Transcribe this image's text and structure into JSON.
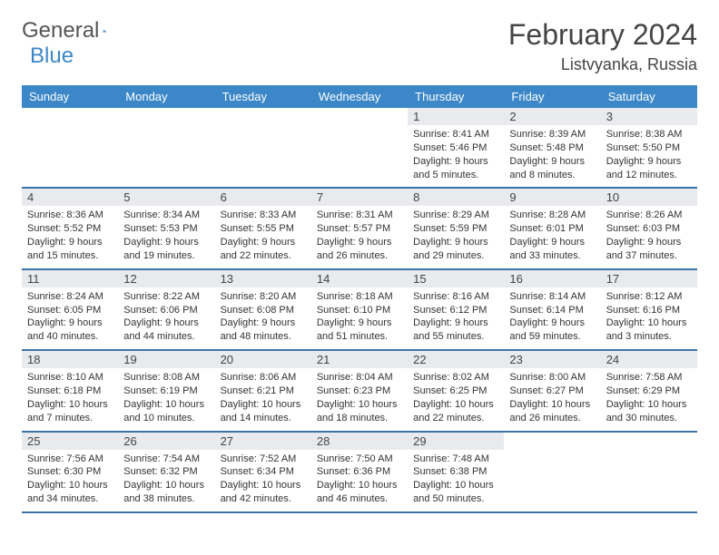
{
  "logo": {
    "text1": "General",
    "text2": "Blue",
    "color1": "#666666",
    "color2": "#3c87c7"
  },
  "title": "February 2024",
  "location": "Listvyanka, Russia",
  "header_bg": "#3c87c7",
  "daynum_bg": "#e8eaed",
  "rule_color": "#3c73a8",
  "days_of_week": [
    "Sunday",
    "Monday",
    "Tuesday",
    "Wednesday",
    "Thursday",
    "Friday",
    "Saturday"
  ],
  "weeks": [
    [
      null,
      null,
      null,
      null,
      {
        "n": "1",
        "sunrise": "Sunrise: 8:41 AM",
        "sunset": "Sunset: 5:46 PM",
        "day1": "Daylight: 9 hours",
        "day2": "and 5 minutes."
      },
      {
        "n": "2",
        "sunrise": "Sunrise: 8:39 AM",
        "sunset": "Sunset: 5:48 PM",
        "day1": "Daylight: 9 hours",
        "day2": "and 8 minutes."
      },
      {
        "n": "3",
        "sunrise": "Sunrise: 8:38 AM",
        "sunset": "Sunset: 5:50 PM",
        "day1": "Daylight: 9 hours",
        "day2": "and 12 minutes."
      }
    ],
    [
      {
        "n": "4",
        "sunrise": "Sunrise: 8:36 AM",
        "sunset": "Sunset: 5:52 PM",
        "day1": "Daylight: 9 hours",
        "day2": "and 15 minutes."
      },
      {
        "n": "5",
        "sunrise": "Sunrise: 8:34 AM",
        "sunset": "Sunset: 5:53 PM",
        "day1": "Daylight: 9 hours",
        "day2": "and 19 minutes."
      },
      {
        "n": "6",
        "sunrise": "Sunrise: 8:33 AM",
        "sunset": "Sunset: 5:55 PM",
        "day1": "Daylight: 9 hours",
        "day2": "and 22 minutes."
      },
      {
        "n": "7",
        "sunrise": "Sunrise: 8:31 AM",
        "sunset": "Sunset: 5:57 PM",
        "day1": "Daylight: 9 hours",
        "day2": "and 26 minutes."
      },
      {
        "n": "8",
        "sunrise": "Sunrise: 8:29 AM",
        "sunset": "Sunset: 5:59 PM",
        "day1": "Daylight: 9 hours",
        "day2": "and 29 minutes."
      },
      {
        "n": "9",
        "sunrise": "Sunrise: 8:28 AM",
        "sunset": "Sunset: 6:01 PM",
        "day1": "Daylight: 9 hours",
        "day2": "and 33 minutes."
      },
      {
        "n": "10",
        "sunrise": "Sunrise: 8:26 AM",
        "sunset": "Sunset: 6:03 PM",
        "day1": "Daylight: 9 hours",
        "day2": "and 37 minutes."
      }
    ],
    [
      {
        "n": "11",
        "sunrise": "Sunrise: 8:24 AM",
        "sunset": "Sunset: 6:05 PM",
        "day1": "Daylight: 9 hours",
        "day2": "and 40 minutes."
      },
      {
        "n": "12",
        "sunrise": "Sunrise: 8:22 AM",
        "sunset": "Sunset: 6:06 PM",
        "day1": "Daylight: 9 hours",
        "day2": "and 44 minutes."
      },
      {
        "n": "13",
        "sunrise": "Sunrise: 8:20 AM",
        "sunset": "Sunset: 6:08 PM",
        "day1": "Daylight: 9 hours",
        "day2": "and 48 minutes."
      },
      {
        "n": "14",
        "sunrise": "Sunrise: 8:18 AM",
        "sunset": "Sunset: 6:10 PM",
        "day1": "Daylight: 9 hours",
        "day2": "and 51 minutes."
      },
      {
        "n": "15",
        "sunrise": "Sunrise: 8:16 AM",
        "sunset": "Sunset: 6:12 PM",
        "day1": "Daylight: 9 hours",
        "day2": "and 55 minutes."
      },
      {
        "n": "16",
        "sunrise": "Sunrise: 8:14 AM",
        "sunset": "Sunset: 6:14 PM",
        "day1": "Daylight: 9 hours",
        "day2": "and 59 minutes."
      },
      {
        "n": "17",
        "sunrise": "Sunrise: 8:12 AM",
        "sunset": "Sunset: 6:16 PM",
        "day1": "Daylight: 10 hours",
        "day2": "and 3 minutes."
      }
    ],
    [
      {
        "n": "18",
        "sunrise": "Sunrise: 8:10 AM",
        "sunset": "Sunset: 6:18 PM",
        "day1": "Daylight: 10 hours",
        "day2": "and 7 minutes."
      },
      {
        "n": "19",
        "sunrise": "Sunrise: 8:08 AM",
        "sunset": "Sunset: 6:19 PM",
        "day1": "Daylight: 10 hours",
        "day2": "and 10 minutes."
      },
      {
        "n": "20",
        "sunrise": "Sunrise: 8:06 AM",
        "sunset": "Sunset: 6:21 PM",
        "day1": "Daylight: 10 hours",
        "day2": "and 14 minutes."
      },
      {
        "n": "21",
        "sunrise": "Sunrise: 8:04 AM",
        "sunset": "Sunset: 6:23 PM",
        "day1": "Daylight: 10 hours",
        "day2": "and 18 minutes."
      },
      {
        "n": "22",
        "sunrise": "Sunrise: 8:02 AM",
        "sunset": "Sunset: 6:25 PM",
        "day1": "Daylight: 10 hours",
        "day2": "and 22 minutes."
      },
      {
        "n": "23",
        "sunrise": "Sunrise: 8:00 AM",
        "sunset": "Sunset: 6:27 PM",
        "day1": "Daylight: 10 hours",
        "day2": "and 26 minutes."
      },
      {
        "n": "24",
        "sunrise": "Sunrise: 7:58 AM",
        "sunset": "Sunset: 6:29 PM",
        "day1": "Daylight: 10 hours",
        "day2": "and 30 minutes."
      }
    ],
    [
      {
        "n": "25",
        "sunrise": "Sunrise: 7:56 AM",
        "sunset": "Sunset: 6:30 PM",
        "day1": "Daylight: 10 hours",
        "day2": "and 34 minutes."
      },
      {
        "n": "26",
        "sunrise": "Sunrise: 7:54 AM",
        "sunset": "Sunset: 6:32 PM",
        "day1": "Daylight: 10 hours",
        "day2": "and 38 minutes."
      },
      {
        "n": "27",
        "sunrise": "Sunrise: 7:52 AM",
        "sunset": "Sunset: 6:34 PM",
        "day1": "Daylight: 10 hours",
        "day2": "and 42 minutes."
      },
      {
        "n": "28",
        "sunrise": "Sunrise: 7:50 AM",
        "sunset": "Sunset: 6:36 PM",
        "day1": "Daylight: 10 hours",
        "day2": "and 46 minutes."
      },
      {
        "n": "29",
        "sunrise": "Sunrise: 7:48 AM",
        "sunset": "Sunset: 6:38 PM",
        "day1": "Daylight: 10 hours",
        "day2": "and 50 minutes."
      },
      null,
      null
    ]
  ]
}
